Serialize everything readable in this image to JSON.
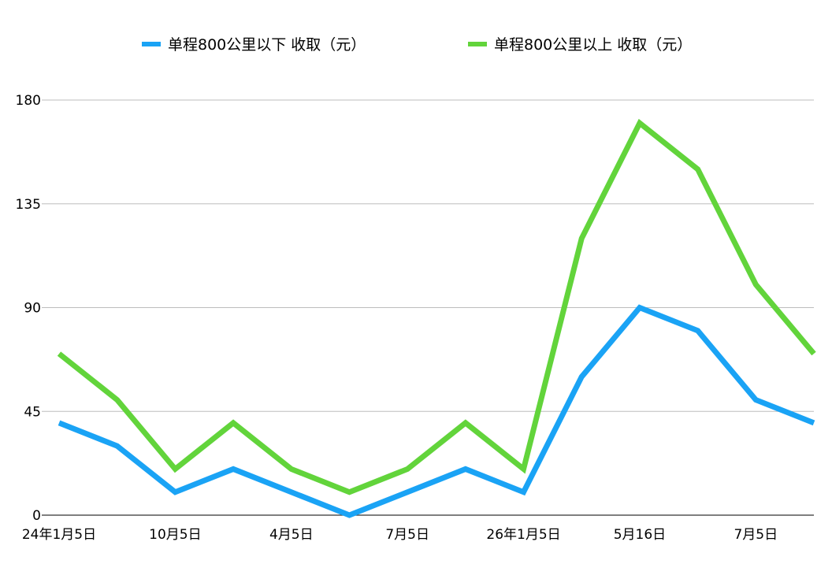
{
  "chart_data": {
    "type": "line",
    "x_tick_labels": [
      "24年1月5日",
      "10月5日",
      "4月5日",
      "7月5日",
      "26年1月5日",
      "5月16日",
      "7月5日"
    ],
    "x_tick_positions": [
      0,
      2,
      4,
      6,
      8,
      10,
      12
    ],
    "x_count": 14,
    "y_ticks": [
      0,
      45,
      90,
      135,
      180
    ],
    "ylim": [
      0,
      180
    ],
    "grid": "horizontal",
    "legend_position": "top",
    "series": [
      {
        "name": "单程800公里以下 收取（元）",
        "color": "#1aa3f5",
        "values": [
          40,
          30,
          10,
          20,
          10,
          0,
          10,
          20,
          10,
          60,
          90,
          80,
          50,
          40
        ]
      },
      {
        "name": "单程800公里以上 收取（元）",
        "color": "#62d43b",
        "values": [
          70,
          50,
          20,
          40,
          20,
          10,
          20,
          40,
          20,
          120,
          170,
          150,
          100,
          70
        ]
      }
    ]
  }
}
